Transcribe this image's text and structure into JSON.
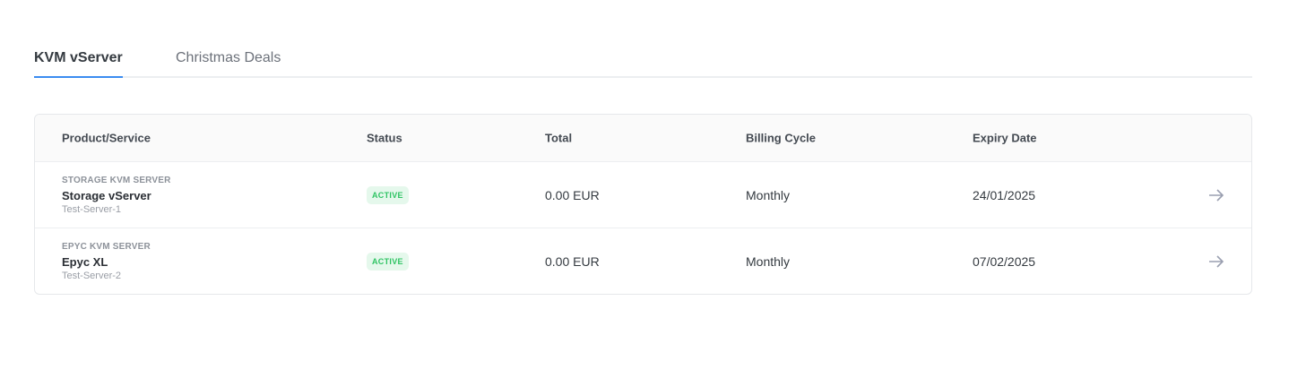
{
  "tabs": [
    {
      "label": "KVM vServer",
      "active": true
    },
    {
      "label": "Christmas Deals",
      "active": false
    }
  ],
  "table": {
    "headers": [
      "Product/Service",
      "Status",
      "Total",
      "Billing Cycle",
      "Expiry Date"
    ],
    "rows": [
      {
        "category": "STORAGE KVM SERVER",
        "name": "Storage vServer",
        "domain": "Test-Server-1",
        "status": "ACTIVE",
        "total": "0.00 EUR",
        "cycle": "Monthly",
        "expiry": "24/01/2025"
      },
      {
        "category": "EPYC KVM SERVER",
        "name": "Epyc XL",
        "domain": "Test-Server-2",
        "status": "ACTIVE",
        "total": "0.00 EUR",
        "cycle": "Monthly",
        "expiry": "07/02/2025"
      }
    ]
  },
  "colors": {
    "accent": "#3b8cf0",
    "status_active": "#2fc464",
    "status_active_bg": "#e5f8ec"
  },
  "icons": {
    "row_action": "arrow-right-icon"
  }
}
